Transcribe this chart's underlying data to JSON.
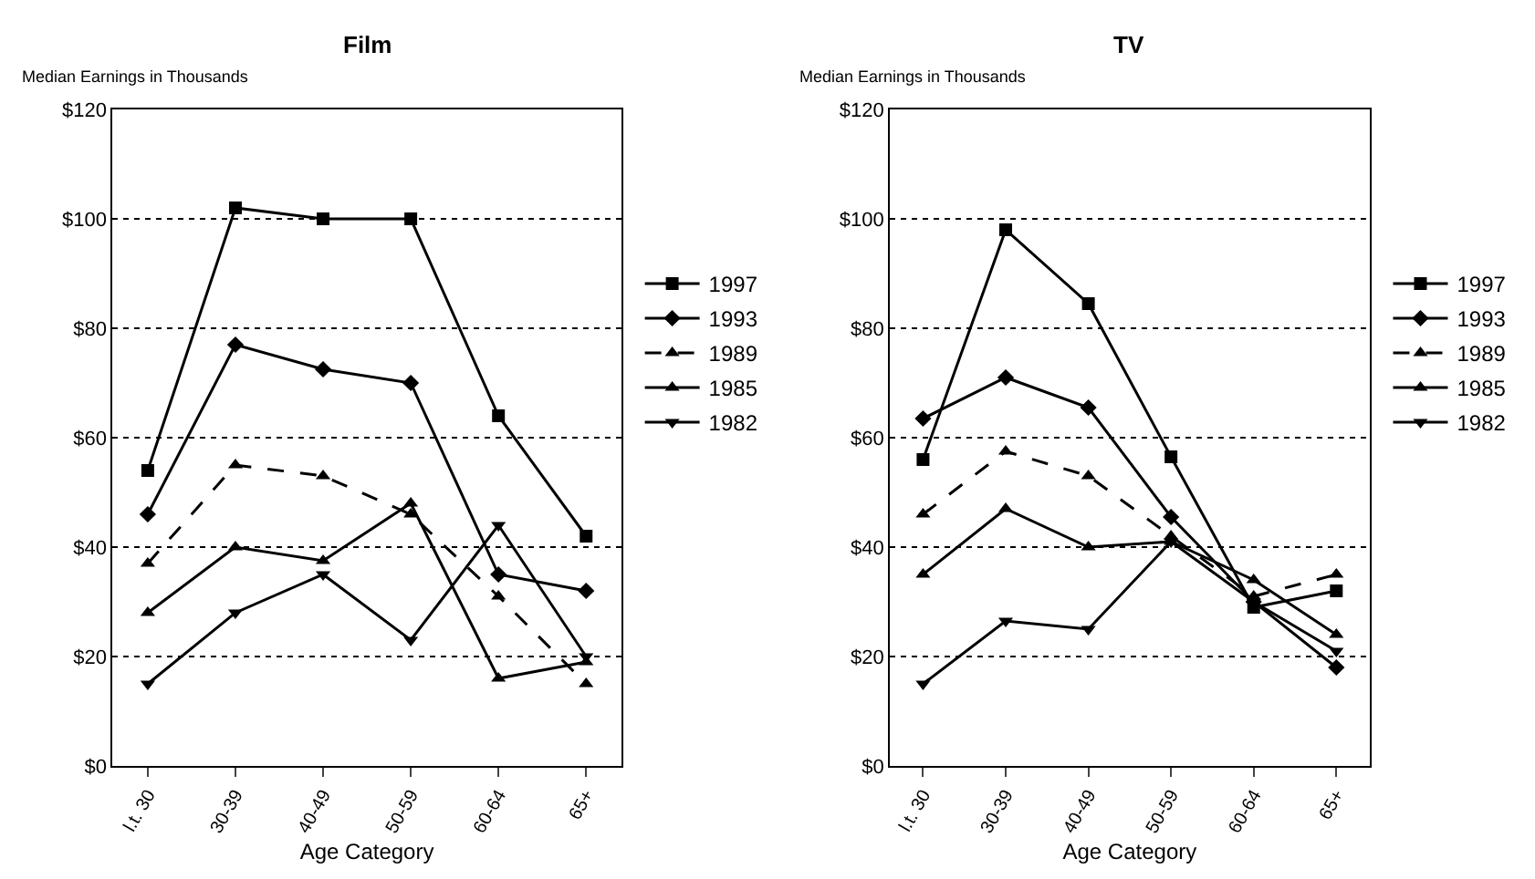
{
  "chart_data": [
    {
      "type": "line",
      "title": "Film",
      "ylabel": "Median Earnings in Thousands",
      "xlabel": "Age Category",
      "categories": [
        "l.t. 30",
        "30-39",
        "40-49",
        "50-59",
        "60-64",
        "65+"
      ],
      "ylim": [
        0,
        120
      ],
      "yticks": [
        {
          "value": 0,
          "label": "$0"
        },
        {
          "value": 20,
          "label": "$20"
        },
        {
          "value": 40,
          "label": "$40"
        },
        {
          "value": 60,
          "label": "$60"
        },
        {
          "value": 80,
          "label": "$80"
        },
        {
          "value": 100,
          "label": "$100"
        },
        {
          "value": 120,
          "label": "$120"
        }
      ],
      "grid": "y",
      "legend": "right",
      "series": [
        {
          "name": "1997",
          "color": "#000000",
          "marker": "square",
          "line_style": "solid",
          "values": [
            54,
            102,
            100,
            100,
            64,
            42
          ]
        },
        {
          "name": "1993",
          "color": "#000000",
          "marker": "diamond",
          "line_style": "solid",
          "values": [
            46,
            77,
            72.5,
            70,
            35,
            32
          ]
        },
        {
          "name": "1989",
          "color": "#000000",
          "marker": "triangle",
          "line_style": "dashed",
          "values": [
            37,
            55,
            53,
            46,
            31,
            15
          ]
        },
        {
          "name": "1985",
          "color": "#000000",
          "marker": "triangle",
          "line_style": "solid",
          "values": [
            28,
            40,
            37.5,
            48,
            16,
            19
          ]
        },
        {
          "name": "1982",
          "color": "#000000",
          "marker": "triangle-down",
          "line_style": "solid",
          "values": [
            15,
            28,
            35,
            23,
            44,
            20
          ]
        }
      ]
    },
    {
      "type": "line",
      "title": "TV",
      "ylabel": "Median Earnings in Thousands",
      "xlabel": "Age Category",
      "categories": [
        "l.t. 30",
        "30-39",
        "40-49",
        "50-59",
        "60-64",
        "65+"
      ],
      "ylim": [
        0,
        120
      ],
      "yticks": [
        {
          "value": 0,
          "label": "$0"
        },
        {
          "value": 20,
          "label": "$20"
        },
        {
          "value": 40,
          "label": "$40"
        },
        {
          "value": 60,
          "label": "$60"
        },
        {
          "value": 80,
          "label": "$80"
        },
        {
          "value": 100,
          "label": "$100"
        },
        {
          "value": 120,
          "label": "$120"
        }
      ],
      "grid": "y",
      "legend": "right",
      "series": [
        {
          "name": "1997",
          "color": "#000000",
          "marker": "square",
          "line_style": "solid",
          "values": [
            56,
            98,
            84.5,
            56.5,
            29,
            32
          ]
        },
        {
          "name": "1993",
          "color": "#000000",
          "marker": "diamond",
          "line_style": "solid",
          "values": [
            63.5,
            71,
            65.5,
            45.5,
            30,
            18
          ]
        },
        {
          "name": "1989",
          "color": "#000000",
          "marker": "triangle",
          "line_style": "dashed",
          "values": [
            46,
            57.5,
            53,
            42,
            31,
            35
          ]
        },
        {
          "name": "1985",
          "color": "#000000",
          "marker": "triangle",
          "line_style": "solid",
          "values": [
            35,
            47,
            40,
            41,
            34,
            24
          ]
        },
        {
          "name": "1982",
          "color": "#000000",
          "marker": "triangle-down",
          "line_style": "solid",
          "values": [
            15,
            26.5,
            25,
            41,
            30,
            21
          ]
        }
      ]
    }
  ]
}
